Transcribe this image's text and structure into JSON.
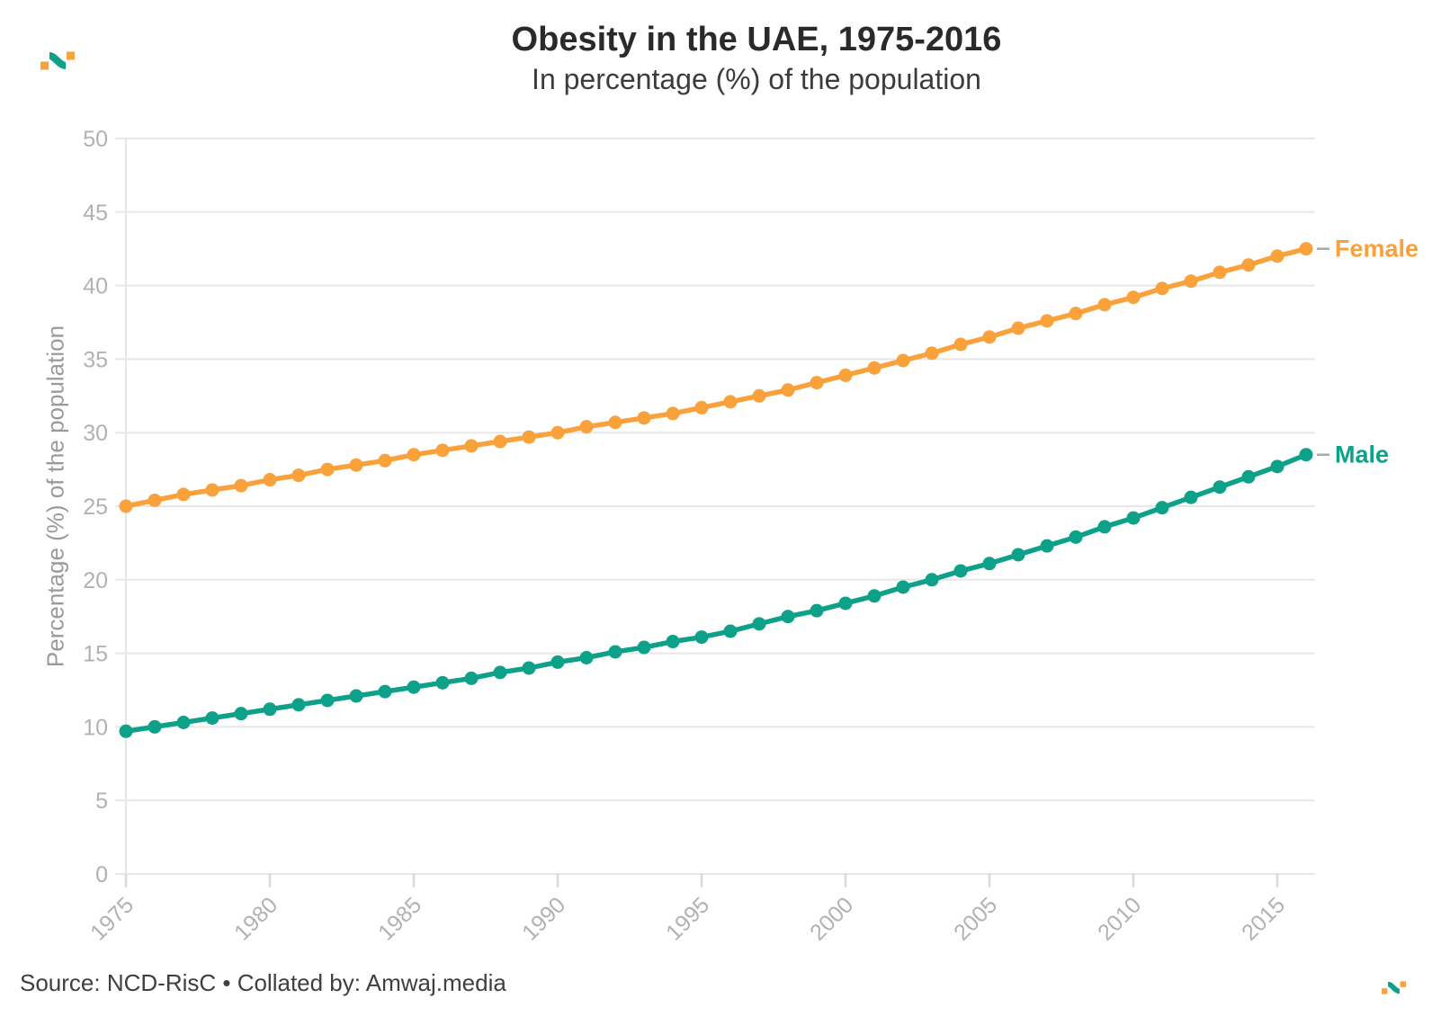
{
  "header": {
    "title": "Obesity in the UAE, 1975-2016",
    "subtitle": "In percentage (%) of the population"
  },
  "chart_data": {
    "type": "line",
    "title": "Obesity in the UAE, 1975-2016",
    "subtitle": "In percentage (%) of the population",
    "xlabel": "",
    "ylabel": "Percentage (%) of the population",
    "x": [
      1975,
      1976,
      1977,
      1978,
      1979,
      1980,
      1981,
      1982,
      1983,
      1984,
      1985,
      1986,
      1987,
      1988,
      1989,
      1990,
      1991,
      1992,
      1993,
      1994,
      1995,
      1996,
      1997,
      1998,
      1999,
      2000,
      2001,
      2002,
      2003,
      2004,
      2005,
      2006,
      2007,
      2008,
      2009,
      2010,
      2011,
      2012,
      2013,
      2014,
      2015,
      2016
    ],
    "series": [
      {
        "name": "Female",
        "color": "#F9A13B",
        "values": [
          25.0,
          25.4,
          25.8,
          26.1,
          26.4,
          26.8,
          27.1,
          27.5,
          27.8,
          28.1,
          28.5,
          28.8,
          29.1,
          29.4,
          29.7,
          30.0,
          30.4,
          30.7,
          31.0,
          31.3,
          31.7,
          32.1,
          32.5,
          32.9,
          33.4,
          33.9,
          34.4,
          34.9,
          35.4,
          36.0,
          36.5,
          37.1,
          37.6,
          38.1,
          38.7,
          39.2,
          39.8,
          40.3,
          40.9,
          41.4,
          42.0,
          42.5
        ]
      },
      {
        "name": "Male",
        "color": "#0DA189",
        "values": [
          9.7,
          10.0,
          10.3,
          10.6,
          10.9,
          11.2,
          11.5,
          11.8,
          12.1,
          12.4,
          12.7,
          13.0,
          13.3,
          13.7,
          14.0,
          14.4,
          14.7,
          15.1,
          15.4,
          15.8,
          16.1,
          16.5,
          17.0,
          17.5,
          17.9,
          18.4,
          18.9,
          19.5,
          20.0,
          20.6,
          21.1,
          21.7,
          22.3,
          22.9,
          23.6,
          24.2,
          24.9,
          25.6,
          26.3,
          27.0,
          27.7,
          28.5
        ]
      }
    ],
    "ylim": [
      0,
      50
    ],
    "yticks": [
      0,
      5,
      10,
      15,
      20,
      25,
      30,
      35,
      40,
      45,
      50
    ],
    "xticks": [
      1975,
      1980,
      1985,
      1990,
      1995,
      2000,
      2005,
      2010,
      2015
    ],
    "grid": true,
    "legend_position": "end-of-line-labels"
  },
  "footer": {
    "source": "Source: NCD-RisC • Collated by: Amwaj.media"
  },
  "colors": {
    "grid": "#e7e7e7",
    "tick": "#d8d8d8",
    "tick_label": "#b2b2b2",
    "axis_title": "#9a9a9a",
    "connector": "#a9a9a9",
    "logo_orange": "#F9A13B",
    "logo_teal": "#0DA189"
  }
}
